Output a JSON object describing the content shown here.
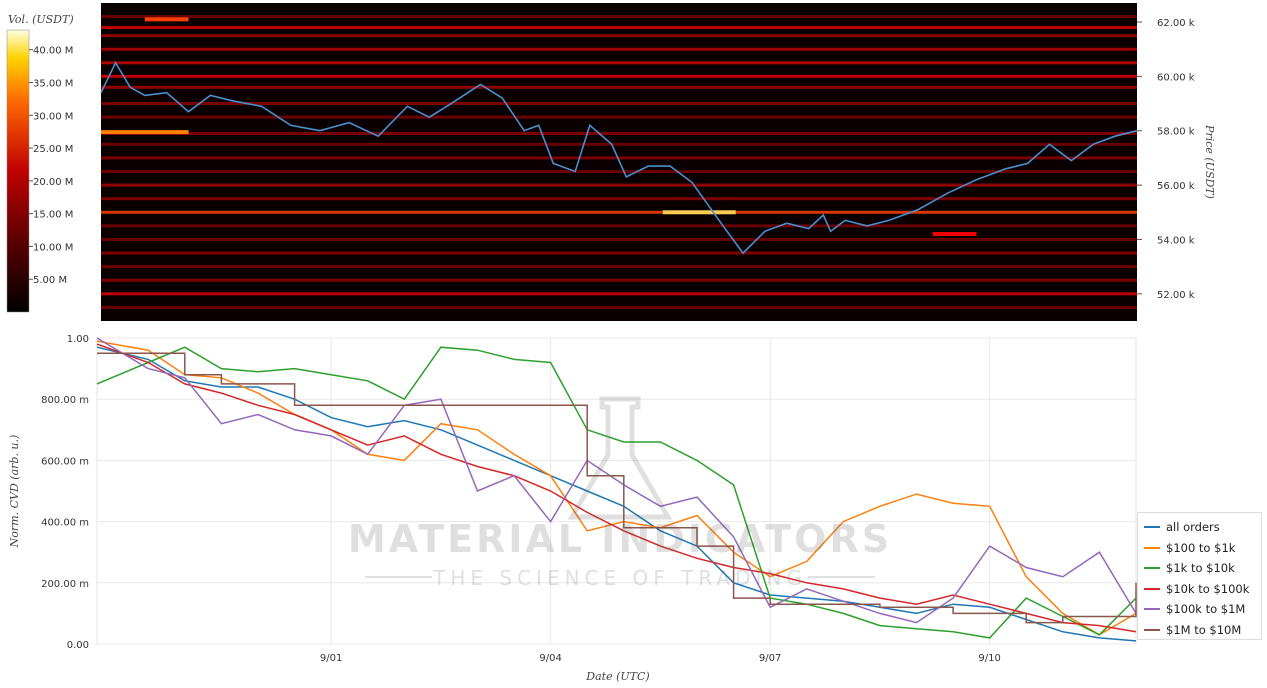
{
  "chart_data": [
    {
      "type": "heatmap",
      "colorbar_label": "Vol. (USDT)",
      "colorbar_ticks": [
        "5.00 M",
        "10.00 M",
        "15.00 M",
        "20.00 M",
        "25.00 M",
        "30.00 M",
        "35.00 M",
        "40.00 M"
      ],
      "colorbar_range": [
        0,
        43
      ],
      "ylabel": "Price (USDT)",
      "ylim": [
        51000,
        62700
      ],
      "y_ticks": [
        "52.00 k",
        "54.00 k",
        "56.00 k",
        "58.00 k",
        "60.00 k",
        "62.00 k"
      ],
      "y_tick_values": [
        52000,
        54000,
        56000,
        58000,
        60000,
        62000
      ],
      "xlim": [
        -3.2,
        11.0
      ],
      "price_series": {
        "name": "price",
        "x": [
          -3.2,
          -3.0,
          -2.8,
          -2.6,
          -2.3,
          -2.0,
          -1.7,
          -1.4,
          -1.0,
          -0.6,
          -0.2,
          0.2,
          0.6,
          1.0,
          1.3,
          1.6,
          2.0,
          2.3,
          2.6,
          2.8,
          3.0,
          3.3,
          3.5,
          3.8,
          4.0,
          4.3,
          4.6,
          4.9,
          5.3,
          5.6,
          5.9,
          6.2,
          6.5,
          6.7,
          6.8,
          7.0,
          7.3,
          7.6,
          8.0,
          8.4,
          8.8,
          9.2,
          9.5,
          9.8,
          10.1,
          10.4,
          10.7,
          11.0
        ],
        "y": [
          59400,
          60500,
          59600,
          59300,
          59400,
          58700,
          59300,
          59100,
          58900,
          58200,
          58000,
          58300,
          57800,
          58900,
          58500,
          59000,
          59700,
          59200,
          58000,
          58200,
          56800,
          56500,
          58200,
          57500,
          56300,
          56700,
          56700,
          56100,
          54600,
          53500,
          54300,
          54600,
          54400,
          54900,
          54300,
          54700,
          54500,
          54700,
          55100,
          55700,
          56200,
          56600,
          56800,
          57500,
          56900,
          57500,
          57800,
          58000
        ]
      },
      "bands": [
        {
          "price": 62200,
          "intensity": 0.3
        },
        {
          "price": 61800,
          "intensity": 0.55
        },
        {
          "price": 61500,
          "intensity": 0.4
        },
        {
          "price": 61000,
          "intensity": 0.45
        },
        {
          "price": 60500,
          "intensity": 0.5
        },
        {
          "price": 60000,
          "intensity": 0.55
        },
        {
          "price": 59600,
          "intensity": 0.4
        },
        {
          "price": 59000,
          "intensity": 0.35
        },
        {
          "price": 58500,
          "intensity": 0.3
        },
        {
          "price": 57900,
          "intensity": 0.35
        },
        {
          "price": 57500,
          "intensity": 0.3
        },
        {
          "price": 57000,
          "intensity": 0.35
        },
        {
          "price": 56500,
          "intensity": 0.3
        },
        {
          "price": 56000,
          "intensity": 0.4
        },
        {
          "price": 55500,
          "intensity": 0.35
        },
        {
          "price": 55000,
          "intensity": 0.7
        },
        {
          "price": 54500,
          "intensity": 0.3
        },
        {
          "price": 54000,
          "intensity": 0.3
        },
        {
          "price": 53500,
          "intensity": 0.35
        },
        {
          "price": 53000,
          "intensity": 0.3
        },
        {
          "price": 52500,
          "intensity": 0.35
        },
        {
          "price": 52000,
          "intensity": 0.55
        },
        {
          "price": 51500,
          "intensity": 0.3
        }
      ],
      "hot_spots": [
        {
          "price": 57950,
          "x0": -3.2,
          "x1": -2.0,
          "intensity": 0.8
        },
        {
          "price": 55000,
          "x0": 4.5,
          "x1": 5.5,
          "intensity": 0.92
        },
        {
          "price": 62100,
          "x0": -2.6,
          "x1": -2.0,
          "intensity": 0.7
        },
        {
          "price": 54200,
          "x0": 8.2,
          "x1": 8.8,
          "intensity": 0.6
        }
      ]
    },
    {
      "type": "line",
      "ylabel": "Norm. CVD (arb. u.)",
      "xlabel": "Date (UTC)",
      "ylim": [
        0,
        1
      ],
      "xlim": [
        -3.2,
        11.0
      ],
      "x_tick_values": [
        0,
        3,
        6,
        9
      ],
      "x_ticks": [
        "9/01",
        "9/04",
        "9/07",
        "9/10"
      ],
      "y_tick_values": [
        0,
        0.2,
        0.4,
        0.6,
        0.8,
        1.0
      ],
      "y_ticks": [
        "0.00",
        "200.00 m",
        "400.00 m",
        "600.00 m",
        "800.00 m",
        "1.00"
      ],
      "grid": true,
      "legend_position": "bottom-right",
      "x": [
        -3.2,
        -2.5,
        -2.0,
        -1.5,
        -1.0,
        -0.5,
        0.0,
        0.5,
        1.0,
        1.5,
        2.0,
        2.5,
        3.0,
        3.5,
        4.0,
        4.5,
        5.0,
        5.5,
        6.0,
        6.5,
        7.0,
        7.5,
        8.0,
        8.5,
        9.0,
        9.5,
        10.0,
        10.5,
        11.0
      ],
      "series": [
        {
          "name": "all orders",
          "color": "#1f77b4",
          "values": [
            0.97,
            0.93,
            0.86,
            0.84,
            0.84,
            0.8,
            0.74,
            0.71,
            0.73,
            0.7,
            0.65,
            0.6,
            0.55,
            0.5,
            0.45,
            0.37,
            0.32,
            0.2,
            0.16,
            0.15,
            0.14,
            0.12,
            0.1,
            0.13,
            0.12,
            0.08,
            0.04,
            0.02,
            0.01
          ]
        },
        {
          "name": "$100 to $1k",
          "color": "#ff7f0e",
          "values": [
            0.99,
            0.96,
            0.88,
            0.87,
            0.82,
            0.75,
            0.7,
            0.62,
            0.6,
            0.72,
            0.7,
            0.62,
            0.55,
            0.37,
            0.4,
            0.38,
            0.42,
            0.3,
            0.22,
            0.27,
            0.4,
            0.45,
            0.49,
            0.46,
            0.45,
            0.22,
            0.1,
            0.03,
            0.1
          ]
        },
        {
          "name": "$1k to $10k",
          "color": "#2ca02c",
          "values": [
            0.85,
            0.92,
            0.97,
            0.9,
            0.89,
            0.9,
            0.88,
            0.86,
            0.8,
            0.97,
            0.96,
            0.93,
            0.92,
            0.7,
            0.66,
            0.66,
            0.6,
            0.52,
            0.15,
            0.13,
            0.1,
            0.06,
            0.05,
            0.04,
            0.02,
            0.15,
            0.09,
            0.03,
            0.15
          ]
        },
        {
          "name": "$10k to $100k",
          "color": "#d62728",
          "values": [
            0.98,
            0.92,
            0.85,
            0.82,
            0.78,
            0.75,
            0.7,
            0.65,
            0.68,
            0.62,
            0.58,
            0.55,
            0.5,
            0.43,
            0.37,
            0.32,
            0.28,
            0.25,
            0.23,
            0.2,
            0.18,
            0.15,
            0.13,
            0.16,
            0.13,
            0.1,
            0.07,
            0.06,
            0.04
          ]
        },
        {
          "name": "$100k to $1M",
          "color": "#9467bd",
          "values": [
            1.0,
            0.9,
            0.87,
            0.72,
            0.75,
            0.7,
            0.68,
            0.62,
            0.78,
            0.8,
            0.5,
            0.55,
            0.4,
            0.6,
            0.52,
            0.45,
            0.48,
            0.35,
            0.12,
            0.18,
            0.14,
            0.1,
            0.07,
            0.15,
            0.32,
            0.25,
            0.22,
            0.3,
            0.1
          ]
        },
        {
          "name": "$1M to $10M",
          "color": "#8c564b",
          "values": [
            0.95,
            0.95,
            0.88,
            0.85,
            0.85,
            0.78,
            0.78,
            0.78,
            0.78,
            0.78,
            0.78,
            0.78,
            0.78,
            0.55,
            0.38,
            0.38,
            0.32,
            0.15,
            0.13,
            0.13,
            0.13,
            0.12,
            0.12,
            0.1,
            0.1,
            0.07,
            0.09,
            0.09,
            0.2
          ]
        }
      ]
    }
  ],
  "watermark": {
    "line1": "MATERIAL INDICATORS",
    "line2": "THE SCIENCE OF TRADING"
  }
}
